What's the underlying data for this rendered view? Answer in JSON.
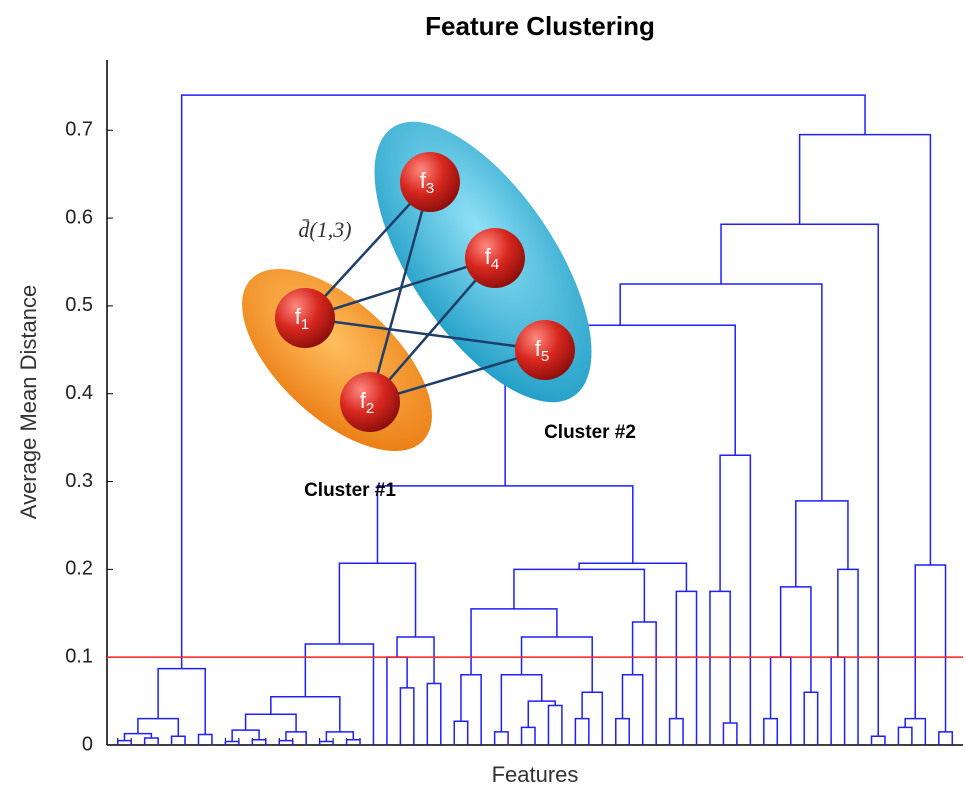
{
  "chart_data": {
    "type": "dendrogram",
    "title": "Feature Clustering",
    "xlabel": "Features",
    "ylabel": "Average Mean Distance",
    "ylim": [
      0,
      0.78
    ],
    "yticks": [
      0,
      0.1,
      0.2,
      0.3,
      0.4,
      0.5,
      0.6,
      0.7
    ],
    "color": "#1f1fff",
    "threshold": 0.1,
    "threshold_color": "#ff1f1f",
    "tree": {
      "h": 0.74,
      "c": [
        {
          "h": 0.087,
          "c": [
            {
              "h": 0.03,
              "c": [
                {
                  "h": 0.013,
                  "c": [
                    {
                      "h": 0.005,
                      "c": [
                        null,
                        null
                      ]
                    },
                    {
                      "h": 0.008,
                      "c": [
                        null,
                        null
                      ]
                    }
                  ]
                },
                {
                  "h": 0.01,
                  "c": [
                    null,
                    null
                  ]
                }
              ]
            },
            {
              "h": 0.012,
              "c": [
                null,
                null
              ]
            }
          ]
        },
        {
          "h": 0.695,
          "c": [
            {
              "h": 0.593,
              "c": [
                {
                  "h": 0.525,
                  "c": [
                    {
                      "h": 0.478,
                      "c": [
                        {
                          "h": 0.295,
                          "c": [
                            {
                              "h": 0.207,
                              "c": [
                                {
                                  "h": 0.115,
                                  "c": [
                                    {
                                      "h": 0.055,
                                      "c": [
                                        {
                                          "h": 0.035,
                                          "c": [
                                            {
                                              "h": 0.017,
                                              "c": [
                                                {
                                                  "h": 0.004,
                                                  "c": [
                                                    null,
                                                    null
                                                  ]
                                                },
                                                {
                                                  "h": 0.006,
                                                  "c": [
                                                    null,
                                                    null
                                                  ]
                                                }
                                              ]
                                            },
                                            {
                                              "h": 0.015,
                                              "c": [
                                                {
                                                  "h": 0.005,
                                                  "c": [
                                                    null,
                                                    null
                                                  ]
                                                },
                                                null
                                              ]
                                            }
                                          ]
                                        },
                                        {
                                          "h": 0.015,
                                          "c": [
                                            {
                                              "h": 0.004,
                                              "c": [
                                                null,
                                                null
                                              ]
                                            },
                                            {
                                              "h": 0.006,
                                              "c": [
                                                null,
                                                null
                                              ]
                                            }
                                          ]
                                        }
                                      ]
                                    },
                                    null
                                  ]
                                },
                                {
                                  "h": 0.123,
                                  "c": [
                                    {
                                      "h": 0.1,
                                      "c": [
                                        null,
                                        {
                                          "h": 0.065,
                                          "c": [
                                            null,
                                            null
                                          ]
                                        }
                                      ]
                                    },
                                    {
                                      "h": 0.07,
                                      "c": [
                                        null,
                                        null
                                      ]
                                    }
                                  ]
                                }
                              ]
                            },
                            {
                              "h": 0.207,
                              "c": [
                                {
                                  "h": 0.2,
                                  "c": [
                                    {
                                      "h": 0.155,
                                      "c": [
                                        {
                                          "h": 0.08,
                                          "c": [
                                            {
                                              "h": 0.027,
                                              "c": [
                                                null,
                                                null
                                              ]
                                            },
                                            null
                                          ]
                                        },
                                        {
                                          "h": 0.123,
                                          "c": [
                                            {
                                              "h": 0.08,
                                              "c": [
                                                {
                                                  "h": 0.015,
                                                  "c": [
                                                    null,
                                                    null
                                                  ]
                                                },
                                                {
                                                  "h": 0.05,
                                                  "c": [
                                                    {
                                                      "h": 0.02,
                                                      "c": [
                                                        null,
                                                        null
                                                      ]
                                                    },
                                                    {
                                                      "h": 0.045,
                                                      "c": [
                                                        null,
                                                        null
                                                      ]
                                                    }
                                                  ]
                                                }
                                              ]
                                            },
                                            {
                                              "h": 0.06,
                                              "c": [
                                                {
                                                  "h": 0.03,
                                                  "c": [
                                                    null,
                                                    null
                                                  ]
                                                },
                                                null
                                              ]
                                            }
                                          ]
                                        }
                                      ]
                                    },
                                    {
                                      "h": 0.14,
                                      "c": [
                                        {
                                          "h": 0.08,
                                          "c": [
                                            {
                                              "h": 0.03,
                                              "c": [
                                                null,
                                                null
                                              ]
                                            },
                                            null
                                          ]
                                        },
                                        null
                                      ]
                                    }
                                  ]
                                },
                                {
                                  "h": 0.175,
                                  "c": [
                                    {
                                      "h": 0.03,
                                      "c": [
                                        null,
                                        null
                                      ]
                                    },
                                    null
                                  ]
                                }
                              ]
                            }
                          ]
                        },
                        {
                          "h": 0.33,
                          "c": [
                            {
                              "h": 0.175,
                              "c": [
                                null,
                                {
                                  "h": 0.025,
                                  "c": [
                                    null,
                                    null
                                  ]
                                }
                              ]
                            },
                            null
                          ]
                        }
                      ]
                    },
                    {
                      "h": 0.278,
                      "c": [
                        {
                          "h": 0.18,
                          "c": [
                            {
                              "h": 0.1,
                              "c": [
                                {
                                  "h": 0.03,
                                  "c": [
                                    null,
                                    null
                                  ]
                                },
                                null
                              ]
                            },
                            {
                              "h": 0.06,
                              "c": [
                                null,
                                null
                              ]
                            }
                          ]
                        },
                        {
                          "h": 0.2,
                          "c": [
                            {
                              "h": 0.1,
                              "c": [
                                null,
                                null
                              ]
                            },
                            null
                          ]
                        }
                      ]
                    }
                  ]
                },
                {
                  "h": 0.01,
                  "c": [
                    null,
                    null
                  ]
                }
              ]
            },
            {
              "h": 0.205,
              "c": [
                {
                  "h": 0.03,
                  "c": [
                    {
                      "h": 0.02,
                      "c": [
                        null,
                        null
                      ]
                    },
                    null
                  ]
                },
                {
                  "h": 0.015,
                  "c": [
                    null,
                    null
                  ]
                }
              ]
            }
          ]
        }
      ]
    }
  },
  "inset": {
    "distance_label": "d̄(1,3)",
    "clusters": [
      "Cluster #1",
      "Cluster #2"
    ],
    "nodes": [
      {
        "label": "f",
        "sub": "1"
      },
      {
        "label": "f",
        "sub": "2"
      },
      {
        "label": "f",
        "sub": "3"
      },
      {
        "label": "f",
        "sub": "4"
      },
      {
        "label": "f",
        "sub": "5"
      }
    ]
  }
}
